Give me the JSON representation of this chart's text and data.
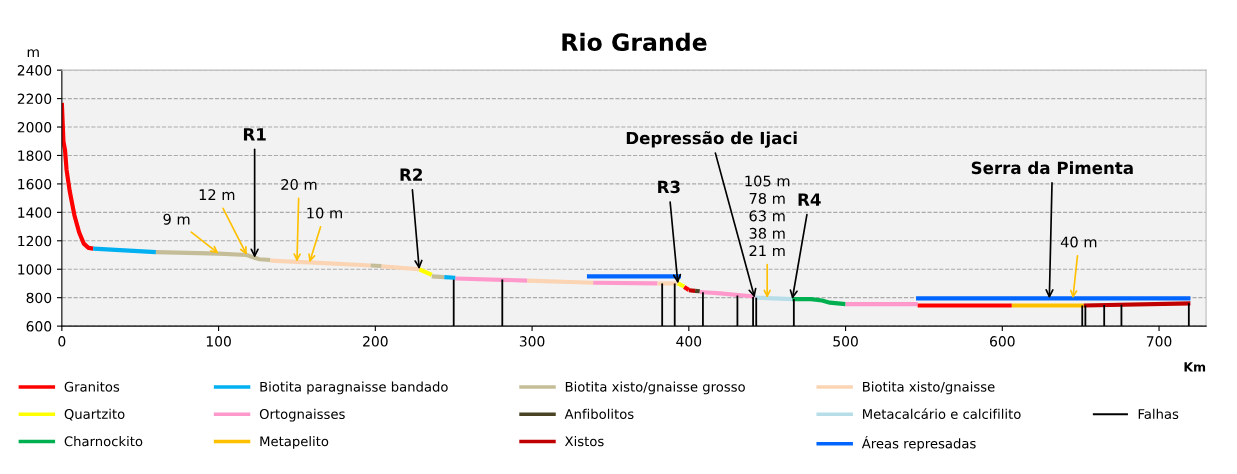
{
  "chart_data": {
    "type": "line",
    "title": "Rio Grande",
    "xlabel": "Km",
    "ylabel": "m",
    "xlim": [
      0,
      730
    ],
    "xticks": [
      0,
      100,
      200,
      300,
      400,
      500,
      600,
      700
    ],
    "ylim": [
      600,
      2400
    ],
    "yticks": [
      600,
      800,
      1000,
      1200,
      1400,
      1600,
      1800,
      2000,
      2200,
      2400
    ],
    "grid": "y",
    "legend": "bottom",
    "marker": "none",
    "line_style": "solid",
    "series": [
      {
        "name": "Granitos",
        "color": "#ff0000",
        "x": [
          0,
          1,
          2,
          3,
          5,
          8,
          11,
          14,
          17,
          20
        ],
        "values": [
          2170,
          1900,
          1840,
          1700,
          1550,
          1380,
          1260,
          1180,
          1150,
          1145
        ]
      },
      {
        "name": "Biotita paragnaisse bandado",
        "color": "#00b0f0",
        "x": [
          20,
          60
        ],
        "values": [
          1145,
          1120
        ]
      },
      {
        "name": "Biotita xisto/gnaisse grosso",
        "color": "#c4bd97",
        "x": [
          60,
          100,
          118,
          123,
          126,
          133
        ],
        "values": [
          1120,
          1110,
          1100,
          1080,
          1070,
          1065
        ]
      },
      {
        "name": "Biotita xisto/gnaisse",
        "color": "#fbd4b4",
        "x": [
          133,
          150,
          158,
          197
        ],
        "values": [
          1060,
          1052,
          1048,
          1026
        ]
      },
      {
        "name": "Quartzito",
        "color": "#ffff00",
        "x": [
          228,
          236
        ],
        "values": [
          1000,
          960
        ]
      },
      {
        "name": "Ortognaisses",
        "color": "#ff99cc",
        "x": [
          251,
          297
        ],
        "values": [
          935,
          920
        ]
      },
      {
        "name": "Anfibolitos",
        "color": "#4a4324",
        "x": [
          404,
          407
        ],
        "values": [
          848,
          845
        ]
      },
      {
        "name": "Metacalcário e calcifilito",
        "color": "#b7dee8",
        "x": [
          442,
          450,
          466
        ],
        "values": [
          800,
          797,
          790
        ]
      },
      {
        "name": "Charnockito",
        "color": "#00b050",
        "x": [
          466,
          478,
          485,
          490,
          500
        ],
        "values": [
          790,
          790,
          780,
          765,
          755
        ]
      },
      {
        "name": "Metapelito",
        "color": "#ffc000",
        "x": [
          606,
          652
        ],
        "values": [
          745,
          745
        ]
      },
      {
        "name": "Xistos",
        "color": "#c00000",
        "x": [
          400,
          404
        ],
        "values": [
          852,
          848
        ]
      },
      {
        "name": "Áreas represadas",
        "color": "#0066ff",
        "x": [
          335,
          395
        ],
        "values": [
          950,
          950
        ]
      },
      {
        "name": "Falhas",
        "color": "#000000",
        "x": [
          250,
          250
        ],
        "values": [
          600,
          940
        ]
      },
      {
        "color": "#c4bd97",
        "x": [
          197,
          204
        ],
        "values": [
          1026,
          1023
        ]
      },
      {
        "color": "#fbd4b4",
        "x": [
          204,
          228
        ],
        "values": [
          1020,
          1000
        ]
      },
      {
        "color": "#c4bd97",
        "x": [
          236,
          244
        ],
        "values": [
          950,
          945
        ]
      },
      {
        "color": "#00b0f0",
        "x": [
          244,
          251
        ],
        "values": [
          945,
          940
        ]
      },
      {
        "color": "#fbd4b4",
        "x": [
          297,
          339
        ],
        "values": [
          920,
          905
        ]
      },
      {
        "color": "#ff99cc",
        "x": [
          339,
          380
        ],
        "values": [
          905,
          900
        ]
      },
      {
        "color": "#fbd4b4",
        "x": [
          380,
          393
        ],
        "values": [
          900,
          900
        ]
      },
      {
        "color": "#ffff00",
        "x": [
          393,
          397
        ],
        "values": [
          900,
          880
        ]
      },
      {
        "color": "#ff0000",
        "x": [
          397,
          400
        ],
        "values": [
          875,
          855
        ]
      },
      {
        "color": "#ff99cc",
        "x": [
          407,
          420,
          440,
          442
        ],
        "values": [
          840,
          830,
          810,
          800
        ]
      },
      {
        "color": "#ff99cc",
        "x": [
          500,
          546
        ],
        "values": [
          755,
          755
        ]
      },
      {
        "color": "#ff0000",
        "x": [
          546,
          606
        ],
        "values": [
          745,
          745
        ]
      },
      {
        "color": "#c00000",
        "x": [
          652,
          720
        ],
        "values": [
          745,
          760
        ]
      },
      {
        "color": "#0066ff",
        "x": [
          545,
          630,
          645,
          720
        ],
        "values": [
          795,
          795,
          795,
          795
        ]
      },
      {
        "color": "#000000",
        "x": [
          281,
          281
        ],
        "values": [
          600,
          928
        ]
      },
      {
        "color": "#000000",
        "x": [
          383,
          383
        ],
        "values": [
          600,
          900
        ]
      },
      {
        "color": "#000000",
        "x": [
          391,
          391
        ],
        "values": [
          600,
          900
        ]
      },
      {
        "color": "#000000",
        "x": [
          409,
          409
        ],
        "values": [
          600,
          838
        ]
      },
      {
        "color": "#000000",
        "x": [
          431,
          431
        ],
        "values": [
          600,
          815
        ]
      },
      {
        "color": "#000000",
        "x": [
          441,
          441
        ],
        "values": [
          600,
          805
        ]
      },
      {
        "color": "#000000",
        "x": [
          443,
          443
        ],
        "values": [
          600,
          800
        ]
      },
      {
        "color": "#000000",
        "x": [
          467,
          467
        ],
        "values": [
          600,
          790
        ]
      },
      {
        "color": "#000000",
        "x": [
          651,
          651
        ],
        "values": [
          600,
          745
        ]
      },
      {
        "color": "#000000",
        "x": [
          653,
          653
        ],
        "values": [
          600,
          745
        ]
      },
      {
        "color": "#000000",
        "x": [
          665,
          665
        ],
        "values": [
          600,
          748
        ]
      },
      {
        "color": "#000000",
        "x": [
          676,
          676
        ],
        "values": [
          600,
          750
        ]
      },
      {
        "color": "#000000",
        "x": [
          719,
          719
        ],
        "values": [
          600,
          760
        ]
      }
    ],
    "annotations": [
      {
        "text": "9 m",
        "x": 100,
        "y": 1110
      },
      {
        "text": "12 m",
        "x": 118,
        "y": 1100
      },
      {
        "text": "R1",
        "x": 123,
        "y": 1080
      },
      {
        "text": "20 m",
        "x": 150,
        "y": 1052
      },
      {
        "text": "10 m",
        "x": 158,
        "y": 1048
      },
      {
        "text": "R2",
        "x": 228,
        "y": 1000
      },
      {
        "text": "R3",
        "x": 393,
        "y": 900
      },
      {
        "text": "Depressão de Ijaci",
        "x": 442,
        "y": 800
      },
      {
        "text": "105 m\n78 m\n63 m\n38 m\n21 m",
        "x": 450,
        "y": 797
      },
      {
        "text": "R4",
        "x": 466,
        "y": 790
      },
      {
        "text": "Serra da Pimenta",
        "x": 630,
        "y": 795
      },
      {
        "text": "40 m",
        "x": 645,
        "y": 795
      }
    ]
  }
}
